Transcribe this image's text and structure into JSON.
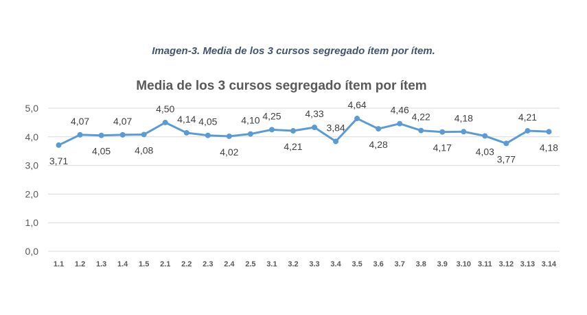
{
  "caption": "Imagen-3. Media de los 3 cursos segregado ítem por ítem.",
  "chart_data": {
    "type": "line",
    "title": "Media de los 3 cursos segregado ítem por ítem",
    "xlabel": "",
    "ylabel": "",
    "ylim": [
      0,
      5
    ],
    "yticks": [
      "0,0",
      "1,0",
      "2,0",
      "3,0",
      "4,0",
      "5,0"
    ],
    "grid": true,
    "color": "#5b9bd5",
    "categories": [
      "1.1",
      "1.2",
      "1.3",
      "1.4",
      "1.5",
      "2.1",
      "2.2",
      "2.3",
      "2.4",
      "2.5",
      "3.1",
      "3.2",
      "3.3",
      "3.4",
      "3.5",
      "3.6",
      "3.7",
      "3.8",
      "3.9",
      "3.10",
      "3.11",
      "3.12",
      "3.13",
      "3.14"
    ],
    "values": [
      3.71,
      4.07,
      4.05,
      4.07,
      4.08,
      4.5,
      4.14,
      4.05,
      4.02,
      4.1,
      4.25,
      4.21,
      4.33,
      3.84,
      4.64,
      4.28,
      4.46,
      4.22,
      4.17,
      4.18,
      4.03,
      3.77,
      4.21,
      4.18
    ],
    "data_labels": [
      "3,71",
      "4,07",
      "4,05",
      "4,07",
      "4,08",
      "4,50",
      "4,14",
      "4,05",
      "4,02",
      "4,10",
      "4,25",
      "4,21",
      "4,33",
      "3,84",
      "4,64",
      "4,28",
      "4,46",
      "4,22",
      "4,17",
      "4,18",
      "4,03",
      "3,77",
      "4,21",
      "4,18"
    ],
    "label_positions": [
      "below",
      "above",
      "below",
      "above",
      "below",
      "above",
      "above",
      "above",
      "below",
      "above",
      "above",
      "below",
      "above",
      "above",
      "above",
      "below",
      "above",
      "above",
      "below",
      "above",
      "below",
      "below",
      "above",
      "below"
    ]
  }
}
